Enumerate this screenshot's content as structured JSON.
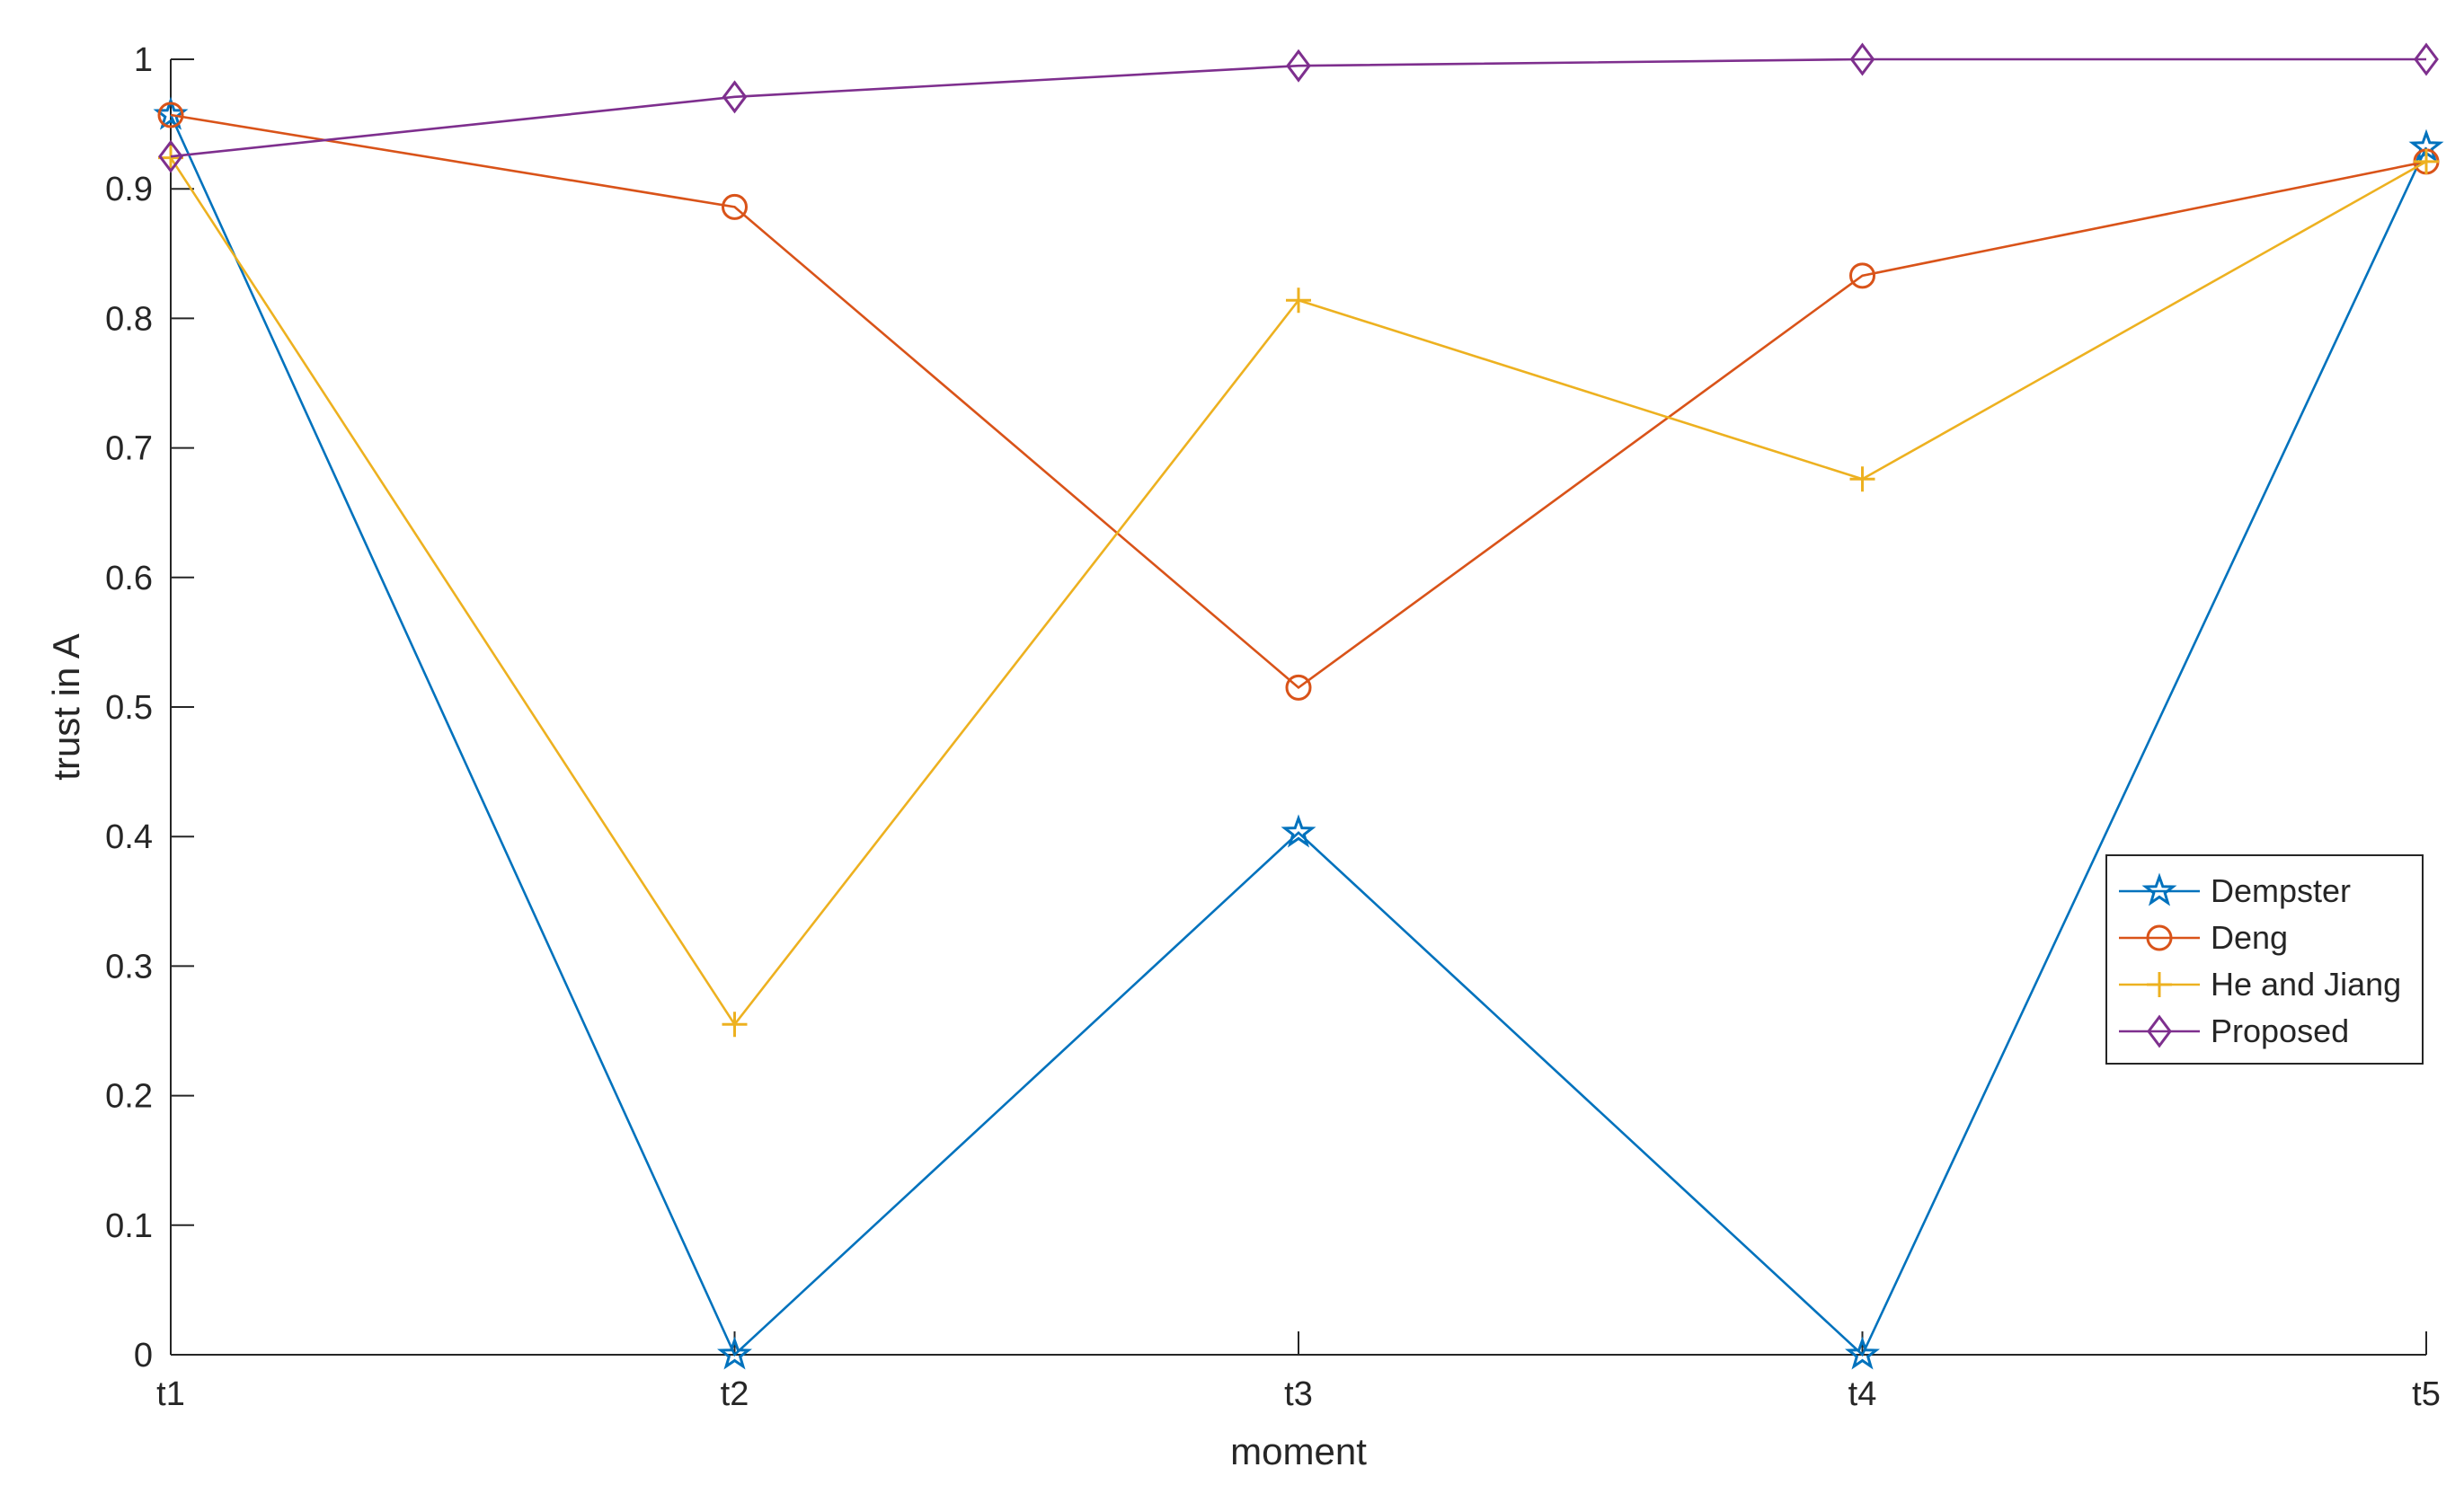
{
  "chart_data": {
    "type": "line",
    "title": "",
    "xlabel": "moment",
    "ylabel": "trust in A",
    "categories": [
      "t1",
      "t2",
      "t3",
      "t4",
      "t5"
    ],
    "ylim": [
      0,
      1
    ],
    "yticks": [
      "0",
      "0.1",
      "0.2",
      "0.3",
      "0.4",
      "0.5",
      "0.6",
      "0.7",
      "0.8",
      "0.9",
      "1"
    ],
    "grid": false,
    "legend_position": "right",
    "series": [
      {
        "name": "Dempster",
        "marker": "star",
        "color": "#0072BD",
        "values": [
          0.957,
          0.0,
          0.403,
          0.0,
          0.932
        ]
      },
      {
        "name": "Deng",
        "marker": "circle",
        "color": "#D95319",
        "values": [
          0.957,
          0.886,
          0.515,
          0.833,
          0.921
        ]
      },
      {
        "name": "He and Jiang",
        "marker": "plus",
        "color": "#EDB120",
        "values": [
          0.924,
          0.255,
          0.814,
          0.676,
          0.921
        ]
      },
      {
        "name": "Proposed",
        "marker": "diamond",
        "color": "#7E2F8E",
        "values": [
          0.925,
          0.971,
          0.995,
          1.0,
          1.0
        ]
      }
    ]
  }
}
